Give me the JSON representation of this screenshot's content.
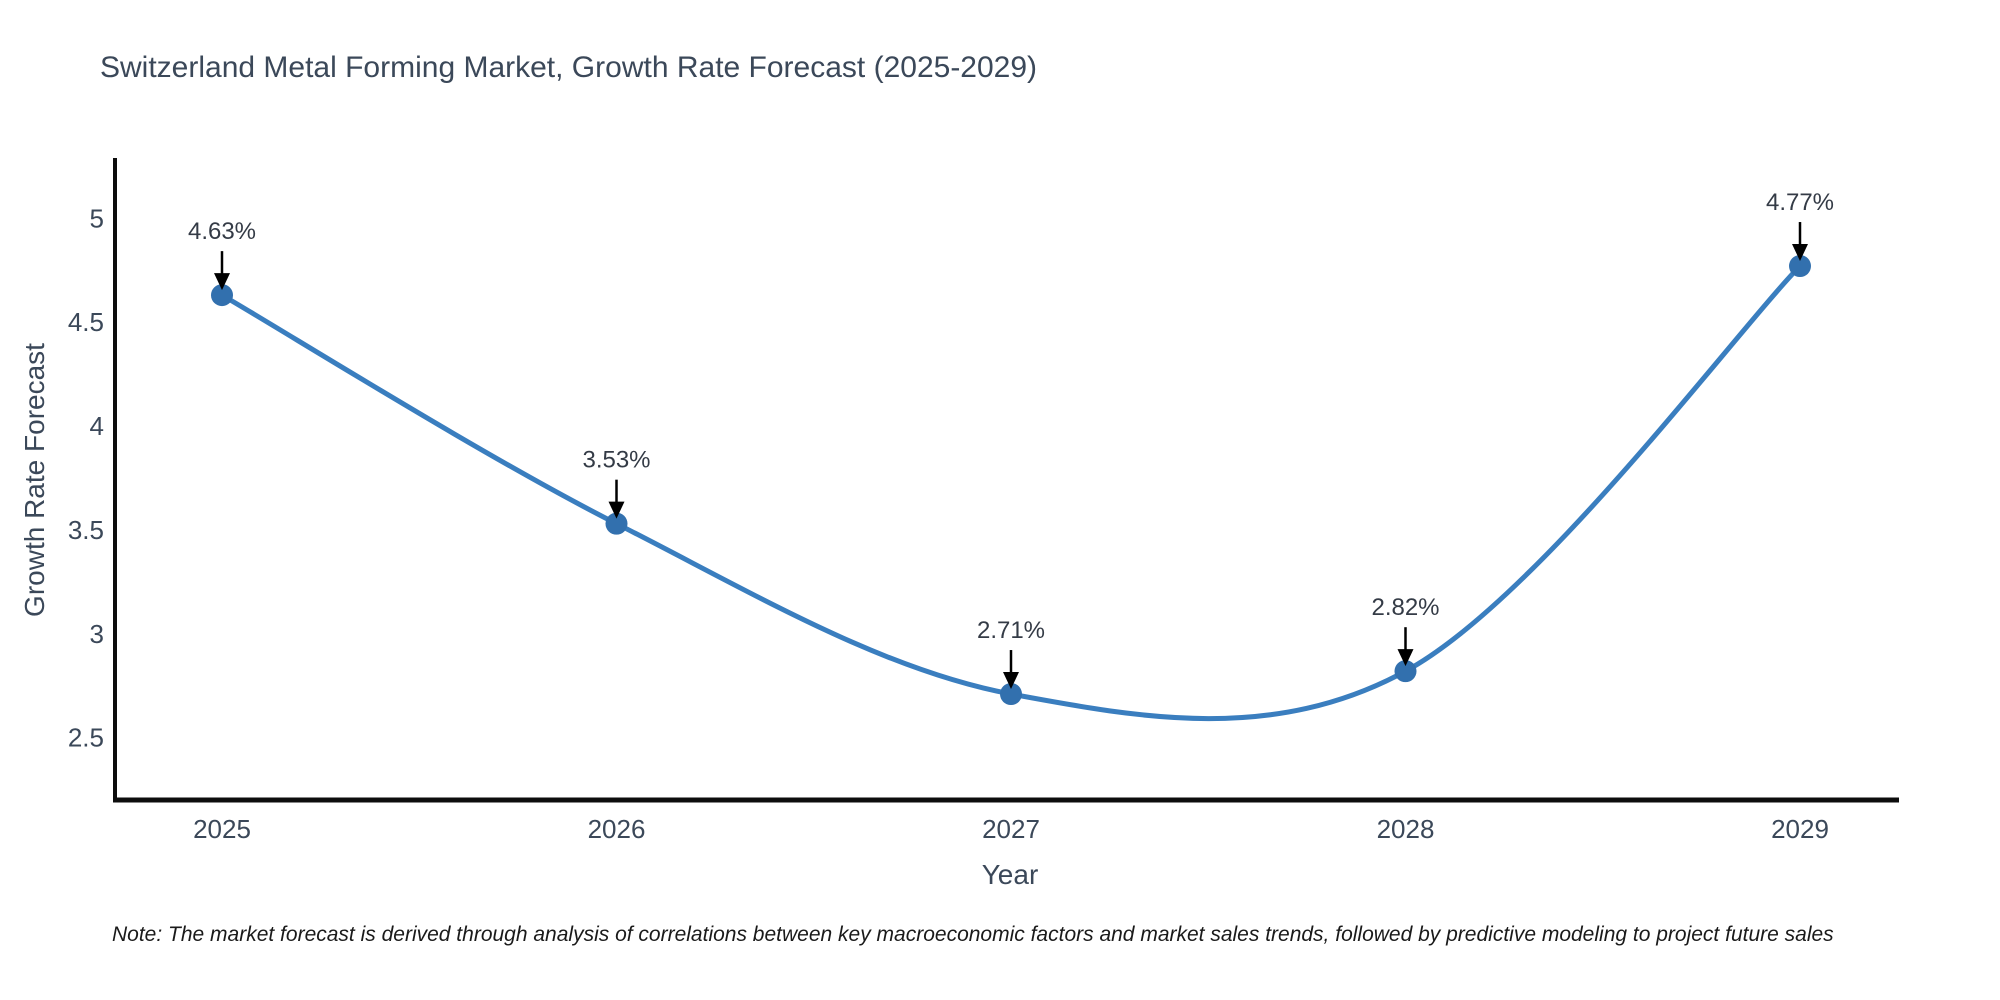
{
  "note": "Note: The market forecast is derived through analysis of correlations between key macroeconomic factors and market sales trends, followed by predictive modeling to project future sales",
  "chart_data": {
    "type": "line",
    "line_shape": "spline",
    "title": "Switzerland Metal Forming Market, Growth Rate Forecast (2025-2029)",
    "xlabel": "Year",
    "ylabel": "Growth Rate Forecast",
    "x": [
      "2025",
      "2026",
      "2027",
      "2028",
      "2029"
    ],
    "series": [
      {
        "name": "Growth Rate Forecast",
        "values": [
          4.63,
          3.53,
          2.71,
          2.82,
          4.77
        ]
      }
    ],
    "point_labels": [
      "4.63%",
      "3.53%",
      "2.71%",
      "2.82%",
      "4.77%"
    ],
    "yticks": [
      2.5,
      3,
      3.5,
      4,
      4.5,
      5
    ],
    "ylim": [
      2.2,
      5.29
    ],
    "grid": false,
    "legend_position": "none",
    "annotations_have_arrows": true,
    "colors": {
      "line": "#3a7ebf",
      "marker": "#3270ae",
      "arrow": "#000000",
      "axis_line": "#0d0d0d"
    }
  }
}
